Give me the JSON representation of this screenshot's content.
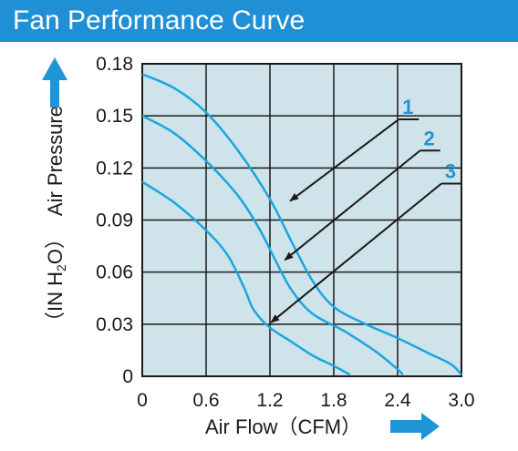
{
  "header": {
    "title": "Fan Performance Curve"
  },
  "chart_data": {
    "type": "line",
    "title": "Fan Performance Curve",
    "xlabel": "Air Flow（CFM）",
    "ylabel": "Air Pressure",
    "ylabel_unit_prefix": "（IN H",
    "ylabel_unit_sub": "2",
    "ylabel_unit_suffix": "O）",
    "xlim": [
      0,
      3.0
    ],
    "ylim": [
      0,
      0.18
    ],
    "x_ticks": [
      "0",
      "0.6",
      "1.2",
      "1.8",
      "2.4",
      "3.0"
    ],
    "y_ticks": [
      "0",
      "0.03",
      "0.06",
      "0.09",
      "0.12",
      "0.15",
      "0.18"
    ],
    "grid": true,
    "colors": {
      "curve": "#1aa6e0",
      "plot_bg": "#cfe3ea",
      "grid": "#1a1a1a",
      "header": "#1f8fd6",
      "arrow": "#1f95d6"
    },
    "series": [
      {
        "name": "1",
        "points": [
          [
            0,
            0.174
          ],
          [
            0.3,
            0.166
          ],
          [
            0.6,
            0.152
          ],
          [
            0.9,
            0.13
          ],
          [
            1.2,
            0.102
          ],
          [
            1.4,
            0.078
          ],
          [
            1.6,
            0.055
          ],
          [
            1.8,
            0.04
          ],
          [
            2.1,
            0.03
          ],
          [
            2.4,
            0.022
          ],
          [
            2.7,
            0.013
          ],
          [
            2.9,
            0.007
          ],
          [
            3.0,
            0.001
          ]
        ]
      },
      {
        "name": "2",
        "points": [
          [
            0,
            0.15
          ],
          [
            0.3,
            0.14
          ],
          [
            0.6,
            0.124
          ],
          [
            0.9,
            0.104
          ],
          [
            1.1,
            0.085
          ],
          [
            1.25,
            0.067
          ],
          [
            1.4,
            0.05
          ],
          [
            1.6,
            0.036
          ],
          [
            1.9,
            0.026
          ],
          [
            2.2,
            0.014
          ],
          [
            2.4,
            0.004
          ],
          [
            2.45,
            0.001
          ]
        ]
      },
      {
        "name": "3",
        "points": [
          [
            0,
            0.112
          ],
          [
            0.3,
            0.1
          ],
          [
            0.6,
            0.084
          ],
          [
            0.8,
            0.07
          ],
          [
            0.95,
            0.052
          ],
          [
            1.05,
            0.038
          ],
          [
            1.2,
            0.028
          ],
          [
            1.4,
            0.02
          ],
          [
            1.6,
            0.012
          ],
          [
            1.8,
            0.006
          ],
          [
            1.95,
            0.001
          ]
        ]
      }
    ],
    "annotations": [
      {
        "text": "1",
        "from": [
          2.6,
          0.148
        ],
        "to": [
          1.39,
          0.101
        ]
      },
      {
        "text": "2",
        "from": [
          2.8,
          0.13
        ],
        "to": [
          1.34,
          0.067
        ]
      },
      {
        "text": "3",
        "from": [
          3.0,
          0.111
        ],
        "to": [
          1.21,
          0.031
        ]
      }
    ]
  }
}
